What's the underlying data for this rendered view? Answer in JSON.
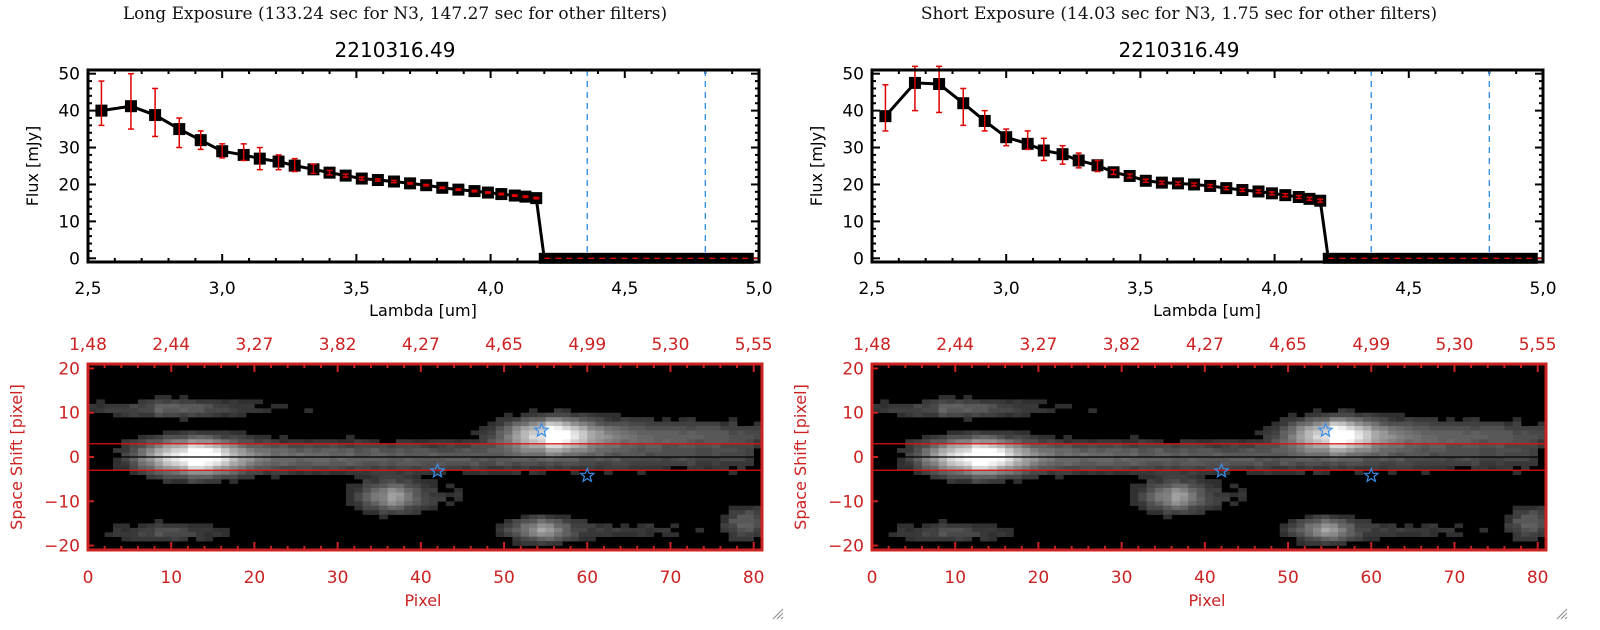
{
  "colors": {
    "axis": "#000000",
    "errorbar": "#e00000",
    "marker": "#000000",
    "vline": "#2a8ae6",
    "zeroline": "#e00000",
    "image_frame": "#cc2222",
    "star": "#3a8ee8",
    "band": "#dd1111"
  },
  "chart_data": [
    {
      "type": "line",
      "panel": "left",
      "exposure_title": "Long Exposure (133.24 sec for N3, 147.27 sec for other filters)",
      "title": "2210316.49",
      "xlabel": "Lambda [um]",
      "ylabel": "Flux [mJy]",
      "xlim": [
        2.5,
        5.0
      ],
      "ylim": [
        -1,
        51
      ],
      "xticks": [
        "2.5",
        "3.0",
        "3.5",
        "4.0",
        "4.5",
        "5.0"
      ],
      "xtick_values": [
        2.5,
        3.0,
        3.5,
        4.0,
        4.5,
        5.0
      ],
      "yticks": [
        "0",
        "10",
        "20",
        "30",
        "40",
        "50"
      ],
      "ytick_values": [
        0,
        10,
        20,
        30,
        40,
        50
      ],
      "vlines": [
        4.36,
        4.8
      ],
      "zero_line": 0,
      "x": [
        2.55,
        2.66,
        2.75,
        2.84,
        2.92,
        3.0,
        3.08,
        3.14,
        3.21,
        3.27,
        3.34,
        3.4,
        3.46,
        3.52,
        3.58,
        3.64,
        3.7,
        3.76,
        3.82,
        3.88,
        3.94,
        3.99,
        4.04,
        4.09,
        4.13,
        4.17,
        4.2,
        4.24,
        4.28,
        4.32,
        4.36,
        4.4,
        4.44,
        4.48,
        4.52,
        4.56,
        4.6,
        4.64,
        4.68,
        4.72,
        4.76,
        4.8,
        4.84,
        4.88,
        4.92,
        4.96
      ],
      "y": [
        40,
        41.2,
        38.8,
        35,
        32,
        29,
        28,
        27,
        26.2,
        25.1,
        24.1,
        23.2,
        22.4,
        21.6,
        21.2,
        20.8,
        20.3,
        19.8,
        19.1,
        18.6,
        18.2,
        17.8,
        17.4,
        17.0,
        16.7,
        16.3,
        0,
        0,
        0,
        0,
        0,
        0,
        0,
        0,
        0,
        0,
        0,
        0,
        0,
        0,
        0,
        0,
        0,
        0,
        0,
        0
      ],
      "err_low": [
        36,
        35,
        33,
        30,
        29.5,
        27.2,
        26.5,
        24,
        24,
        23.5,
        23,
        22.6,
        22,
        21.2,
        20.9,
        20.5,
        20.1,
        19.6,
        18.9,
        18.4,
        18.0,
        17.6,
        17.2,
        16.8,
        16.5,
        16.1,
        0,
        0,
        0,
        0,
        0,
        0,
        0,
        0,
        0,
        0,
        0,
        0,
        0,
        0,
        0,
        0,
        0,
        0,
        0,
        0
      ],
      "err_high": [
        48,
        50,
        46,
        38,
        34.5,
        31,
        31,
        30,
        28,
        27,
        25.5,
        23.8,
        22.8,
        22.0,
        21.5,
        21.1,
        20.5,
        20.0,
        19.3,
        18.8,
        18.4,
        18.0,
        17.6,
        17.2,
        16.9,
        16.5,
        0,
        0,
        0,
        0,
        0,
        0,
        0,
        0,
        0,
        0,
        0,
        0,
        0,
        0,
        0,
        0,
        0,
        0,
        0,
        0
      ]
    },
    {
      "type": "line",
      "panel": "right",
      "exposure_title": "Short Exposure (14.03 sec for N3, 1.75 sec for other filters)",
      "title": "2210316.49",
      "xlabel": "Lambda [um]",
      "ylabel": "Flux [mJy]",
      "xlim": [
        2.5,
        5.0
      ],
      "ylim": [
        -1,
        51
      ],
      "xticks": [
        "2.5",
        "3.0",
        "3.5",
        "4.0",
        "4.5",
        "5.0"
      ],
      "xtick_values": [
        2.5,
        3.0,
        3.5,
        4.0,
        4.5,
        5.0
      ],
      "yticks": [
        "0",
        "10",
        "20",
        "30",
        "40",
        "50"
      ],
      "ytick_values": [
        0,
        10,
        20,
        30,
        40,
        50
      ],
      "vlines": [
        4.36,
        4.8
      ],
      "zero_line": 0,
      "x": [
        2.55,
        2.66,
        2.75,
        2.84,
        2.92,
        3.0,
        3.08,
        3.14,
        3.21,
        3.27,
        3.34,
        3.4,
        3.46,
        3.52,
        3.58,
        3.64,
        3.7,
        3.76,
        3.82,
        3.88,
        3.94,
        3.99,
        4.04,
        4.09,
        4.13,
        4.17,
        4.2,
        4.24,
        4.28,
        4.32,
        4.36,
        4.4,
        4.44,
        4.48,
        4.52,
        4.56,
        4.6,
        4.64,
        4.68,
        4.72,
        4.76,
        4.8,
        4.84,
        4.88,
        4.92,
        4.96
      ],
      "y": [
        38.5,
        47.5,
        47.2,
        42,
        37.2,
        32.8,
        31,
        29.2,
        28.2,
        26.5,
        25.2,
        23.3,
        22.3,
        21.0,
        20.5,
        20.3,
        20.0,
        19.6,
        19.0,
        18.5,
        18.1,
        17.6,
        17.1,
        16.6,
        16.1,
        15.6,
        0,
        0,
        0,
        0,
        0,
        0,
        0,
        0,
        0,
        0,
        0,
        0,
        0,
        0,
        0,
        0,
        0,
        0,
        0,
        0
      ],
      "err_low": [
        34.5,
        40,
        39.5,
        36,
        34.5,
        30.5,
        29.5,
        26.5,
        25.5,
        24.5,
        23.5,
        22.7,
        21.8,
        20.6,
        20.1,
        19.9,
        19.6,
        19.2,
        18.6,
        18.1,
        17.7,
        17.2,
        16.7,
        16.2,
        15.7,
        15.2,
        0,
        0,
        0,
        0,
        0,
        0,
        0,
        0,
        0,
        0,
        0,
        0,
        0,
        0,
        0,
        0,
        0,
        0,
        0,
        0
      ],
      "err_high": [
        47,
        52,
        52,
        46,
        40,
        35,
        34.5,
        32.5,
        30.5,
        28.5,
        26.5,
        24.0,
        22.8,
        21.4,
        20.9,
        20.7,
        20.4,
        20.0,
        19.4,
        18.9,
        18.5,
        18.0,
        17.5,
        17.0,
        16.5,
        16.0,
        0,
        0,
        0,
        0,
        0,
        0,
        0,
        0,
        0,
        0,
        0,
        0,
        0,
        0,
        0,
        0,
        0,
        0,
        0,
        0
      ]
    },
    {
      "type": "heatmap",
      "panel": "left",
      "xlabel": "Pixel",
      "ylabel": "Space Shift [pixel]",
      "xlim": [
        0,
        81
      ],
      "ylim": [
        -21,
        21
      ],
      "xticks": [
        "0",
        "10",
        "20",
        "30",
        "40",
        "50",
        "60",
        "70",
        "80"
      ],
      "xtick_values": [
        0,
        10,
        20,
        30,
        40,
        50,
        60,
        70,
        80
      ],
      "yticks": [
        "20",
        "10",
        "0",
        "-10",
        "-20"
      ],
      "ytick_values": [
        20,
        10,
        0,
        -10,
        -20
      ],
      "top_xticks": [
        "1.48",
        "2.44",
        "3.27",
        "3.82",
        "4.27",
        "4.65",
        "4.99",
        "5.30",
        "5.55"
      ],
      "band_lines": [
        3,
        -3
      ],
      "center_line": 0,
      "stars": [
        [
          42,
          -3.2
        ],
        [
          54.5,
          6
        ],
        [
          60,
          -4.2
        ]
      ],
      "sources": [
        {
          "x": 12,
          "y": 0,
          "amp": 1.0,
          "sx": 4,
          "sy": 2.6,
          "tail": 68,
          "tail_amp": 0.35
        },
        {
          "x": 55,
          "y": 5,
          "amp": 0.85,
          "sx": 3.5,
          "sy": 2.4,
          "tail": 26,
          "tail_amp": 0.4
        },
        {
          "x": 36,
          "y": -9,
          "amp": 0.45,
          "sx": 2.5,
          "sy": 2.3,
          "tail": 10,
          "tail_amp": 0.15
        },
        {
          "x": 54,
          "y": -16.5,
          "amp": 0.45,
          "sx": 2.5,
          "sy": 1.8,
          "tail": 20,
          "tail_amp": 0.15
        },
        {
          "x": 79,
          "y": -15,
          "amp": 0.28,
          "sx": 2,
          "sy": 2.5,
          "tail": 0,
          "tail_amp": 0
        },
        {
          "x": 8,
          "y": 11,
          "amp": 0.18,
          "sx": 6,
          "sy": 1.5,
          "tail": 22,
          "tail_amp": 0.12
        },
        {
          "x": 8,
          "y": -17,
          "amp": 0.15,
          "sx": 5,
          "sy": 1.5,
          "tail": 10,
          "tail_amp": 0.08
        }
      ]
    },
    {
      "type": "heatmap",
      "panel": "right",
      "xlabel": "Pixel",
      "ylabel": "Space Shift [pixel]",
      "xlim": [
        0,
        81
      ],
      "ylim": [
        -21,
        21
      ],
      "xticks": [
        "0",
        "10",
        "20",
        "30",
        "40",
        "50",
        "60",
        "70",
        "80"
      ],
      "xtick_values": [
        0,
        10,
        20,
        30,
        40,
        50,
        60,
        70,
        80
      ],
      "yticks": [
        "20",
        "10",
        "0",
        "-10",
        "-20"
      ],
      "ytick_values": [
        20,
        10,
        0,
        -10,
        -20
      ],
      "top_xticks": [
        "1.48",
        "2.44",
        "3.27",
        "3.82",
        "4.27",
        "4.65",
        "4.99",
        "5.30",
        "5.55"
      ],
      "band_lines": [
        3,
        -3
      ],
      "center_line": 0,
      "stars": [
        [
          42,
          -3.2
        ],
        [
          54.5,
          6
        ],
        [
          60,
          -4.2
        ]
      ],
      "sources": [
        {
          "x": 12,
          "y": 0,
          "amp": 1.0,
          "sx": 4,
          "sy": 2.6,
          "tail": 68,
          "tail_amp": 0.35
        },
        {
          "x": 55,
          "y": 5,
          "amp": 0.85,
          "sx": 3.5,
          "sy": 2.4,
          "tail": 26,
          "tail_amp": 0.4
        },
        {
          "x": 36,
          "y": -9,
          "amp": 0.45,
          "sx": 2.5,
          "sy": 2.3,
          "tail": 10,
          "tail_amp": 0.15
        },
        {
          "x": 54,
          "y": -16.5,
          "amp": 0.45,
          "sx": 2.5,
          "sy": 1.8,
          "tail": 20,
          "tail_amp": 0.15
        },
        {
          "x": 79,
          "y": -15,
          "amp": 0.28,
          "sx": 2,
          "sy": 2.5,
          "tail": 0,
          "tail_amp": 0
        },
        {
          "x": 8,
          "y": 11,
          "amp": 0.18,
          "sx": 6,
          "sy": 1.5,
          "tail": 22,
          "tail_amp": 0.12
        },
        {
          "x": 8,
          "y": -17,
          "amp": 0.15,
          "sx": 5,
          "sy": 1.5,
          "tail": 10,
          "tail_amp": 0.08
        }
      ]
    }
  ]
}
